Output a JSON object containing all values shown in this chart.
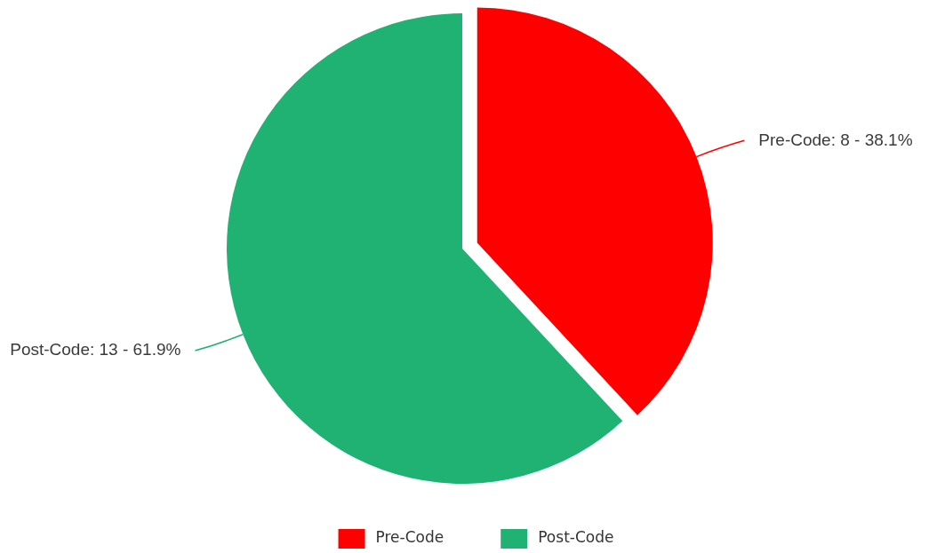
{
  "chart_data": {
    "type": "pie",
    "categories": [
      "Pre-Code",
      "Post-Code"
    ],
    "values": [
      8,
      13
    ],
    "colors": [
      "#ff0000",
      "#1fb272"
    ],
    "value_labels": [
      "Pre-Code: 8 - 38.1%",
      "Post-Code: 13 - 61.9%"
    ],
    "legend": "bottom"
  }
}
